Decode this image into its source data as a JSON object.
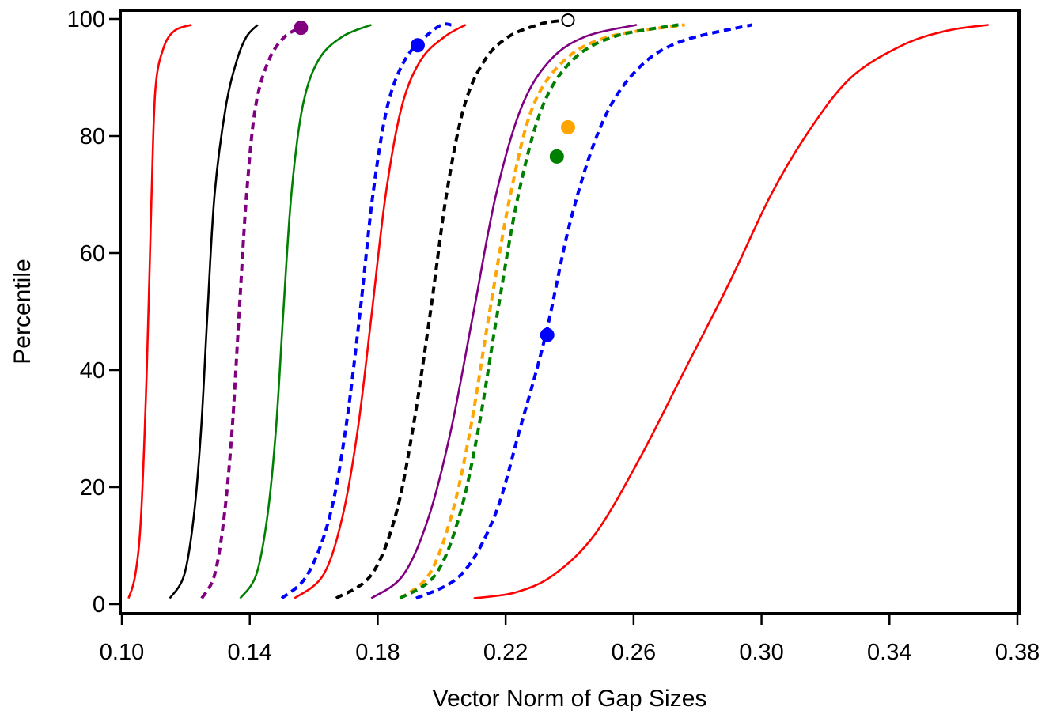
{
  "chart_data": {
    "type": "line",
    "title": "",
    "xlabel": "Vector Norm of Gap Sizes",
    "ylabel": "Percentile",
    "xlim": [
      0.1,
      0.38
    ],
    "ylim": [
      0,
      100
    ],
    "xticks": [
      0.1,
      0.14,
      0.18,
      0.22,
      0.26,
      0.3,
      0.34,
      0.38
    ],
    "xtick_labels": [
      "0.10",
      "0.14",
      "0.18",
      "0.22",
      "0.26",
      "0.30",
      "0.34",
      "0.38"
    ],
    "yticks": [
      0,
      20,
      40,
      60,
      80,
      100
    ],
    "ytick_labels": [
      "0",
      "20",
      "40",
      "60",
      "80",
      "100"
    ],
    "grid": false,
    "legend": "none",
    "series": [
      {
        "color": "#ff0000",
        "dash": "solid",
        "x": [
          0.1021,
          0.1042,
          0.106,
          0.1078,
          0.1093,
          0.1105,
          0.113,
          0.1165,
          0.1218
        ],
        "y": [
          1,
          5,
          15,
          40,
          70,
          88,
          95,
          98,
          99
        ]
      },
      {
        "color": "#000000",
        "dash": "solid",
        "x": [
          0.115,
          0.1195,
          0.1225,
          0.1248,
          0.1268,
          0.129,
          0.1325,
          0.136,
          0.139,
          0.1425
        ],
        "y": [
          1,
          5,
          15,
          30,
          50,
          70,
          85,
          93,
          97,
          99
        ]
      },
      {
        "color": "#800080",
        "dash": "dashed",
        "x": [
          0.125,
          0.129,
          0.132,
          0.1345,
          0.1367,
          0.139,
          0.1418,
          0.146,
          0.151,
          0.156
        ],
        "y": [
          1,
          5,
          15,
          30,
          50,
          70,
          85,
          93,
          97,
          98.5
        ],
        "markers": [
          {
            "x": 0.156,
            "y": 98.5,
            "filled": true
          }
        ]
      },
      {
        "color": "#008000",
        "dash": "solid",
        "x": [
          0.137,
          0.142,
          0.1455,
          0.1482,
          0.1505,
          0.153,
          0.1565,
          0.1615,
          0.169,
          0.178
        ],
        "y": [
          1,
          5,
          15,
          30,
          50,
          70,
          85,
          93,
          97,
          99
        ]
      },
      {
        "color": "#0000ff",
        "dash": "dashed",
        "x": [
          0.15,
          0.158,
          0.165,
          0.17,
          0.1745,
          0.1785,
          0.183,
          0.1885,
          0.195,
          0.2,
          0.203
        ],
        "y": [
          1,
          5,
          15,
          30,
          50,
          70,
          85,
          93,
          97,
          99,
          99
        ],
        "markers": [
          {
            "x": 0.1925,
            "y": 95.5,
            "filled": true
          }
        ]
      },
      {
        "color": "#ff0000",
        "dash": "solid",
        "x": [
          0.154,
          0.163,
          0.169,
          0.1738,
          0.1782,
          0.1825,
          0.1875,
          0.1935,
          0.201,
          0.2075
        ],
        "y": [
          1,
          5,
          15,
          30,
          50,
          70,
          85,
          93,
          97,
          99
        ]
      },
      {
        "color": "#000000",
        "dash": "dashed",
        "x": [
          0.167,
          0.178,
          0.1855,
          0.191,
          0.1965,
          0.2015,
          0.207,
          0.2135,
          0.221,
          0.23,
          0.234,
          0.239
        ],
        "y": [
          1,
          5,
          15,
          30,
          50,
          70,
          85,
          93,
          97,
          99,
          99.5,
          99.8
        ],
        "markers": [
          {
            "x": 0.2395,
            "y": 99.8,
            "filled": false
          }
        ]
      },
      {
        "color": "#800080",
        "dash": "solid",
        "x": [
          0.178,
          0.188,
          0.196,
          0.203,
          0.21,
          0.217,
          0.225,
          0.234,
          0.245,
          0.261
        ],
        "y": [
          1,
          5,
          15,
          30,
          50,
          70,
          85,
          93,
          97,
          99
        ]
      },
      {
        "color": "#ffa500",
        "dash": "dashed",
        "x": [
          0.187,
          0.196,
          0.203,
          0.209,
          0.215,
          0.2215,
          0.2285,
          0.2385,
          0.2525,
          0.276
        ],
        "y": [
          1,
          5,
          15,
          30,
          50,
          70,
          85,
          93,
          97,
          99
        ],
        "markers": [
          {
            "x": 0.2395,
            "y": 81.5,
            "filled": true
          }
        ]
      },
      {
        "color": "#008000",
        "dash": "dashed",
        "x": [
          0.187,
          0.198,
          0.2055,
          0.2115,
          0.2175,
          0.224,
          0.2315,
          0.241,
          0.254,
          0.274
        ],
        "y": [
          1,
          5,
          15,
          30,
          50,
          70,
          85,
          93,
          97,
          99
        ],
        "markers": [
          {
            "x": 0.236,
            "y": 76.5,
            "filled": true
          }
        ]
      },
      {
        "color": "#0000ff",
        "dash": "dashed",
        "x": [
          0.192,
          0.206,
          0.2165,
          0.2245,
          0.2325,
          0.2405,
          0.25,
          0.2605,
          0.274,
          0.297
        ],
        "y": [
          1,
          5,
          15,
          30,
          46,
          66,
          82,
          91,
          96,
          99
        ],
        "markers": [
          {
            "x": 0.233,
            "y": 46,
            "filled": true
          }
        ]
      },
      {
        "color": "#ff0000",
        "dash": "solid",
        "x": [
          0.21,
          0.223,
          0.235,
          0.248,
          0.262,
          0.276,
          0.29,
          0.303,
          0.315,
          0.328,
          0.344,
          0.358,
          0.371
        ],
        "y": [
          1,
          2,
          5,
          12,
          25,
          40,
          55,
          70,
          81,
          90,
          95.5,
          98,
          99
        ]
      }
    ]
  }
}
